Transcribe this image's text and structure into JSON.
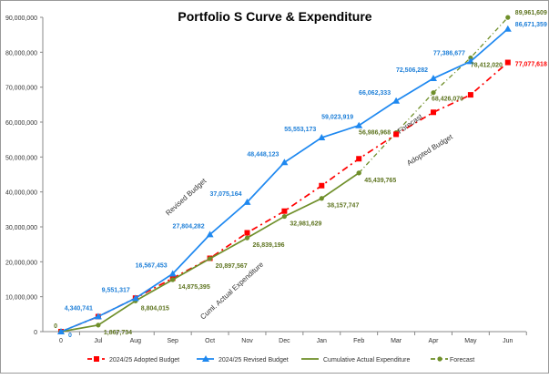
{
  "chart_data": {
    "type": "line",
    "title": "Portfolio S Curve & Expenditure",
    "categories": [
      "0",
      "Jul",
      "Aug",
      "Sep",
      "Oct",
      "Nov",
      "Dec",
      "Jan",
      "Feb",
      "Mar",
      "Apr",
      "May",
      "Jun"
    ],
    "ylim": [
      0,
      90000000
    ],
    "yticks": [
      "0",
      "10,000,000",
      "20,000,000",
      "30,000,000",
      "40,000,000",
      "50,000,000",
      "60,000,000",
      "70,000,000",
      "80,000,000",
      "90,000,000"
    ],
    "ytick_values": [
      0,
      10000000,
      20000000,
      30000000,
      40000000,
      50000000,
      60000000,
      70000000,
      80000000,
      90000000
    ],
    "grid": false,
    "legend_position": "bottom",
    "series": [
      {
        "name": "2024/25 Adopted Budget",
        "color": "#ff0000",
        "style": "dash-dot",
        "marker": "square",
        "values": [
          0,
          4300000,
          9600000,
          15300000,
          21000000,
          28300000,
          34500000,
          41800000,
          49500000,
          56500000,
          62800000,
          67800000,
          77077618
        ],
        "labels": [
          null,
          null,
          null,
          null,
          null,
          null,
          null,
          null,
          null,
          null,
          null,
          null,
          "77,077,618"
        ]
      },
      {
        "name": "2024/25 Revised Budget",
        "color": "#1e88f0",
        "style": "solid",
        "marker": "triangle",
        "values": [
          0,
          4340741,
          9551317,
          16567453,
          27804282,
          37075164,
          48448123,
          55553173,
          59023919,
          66062333,
          72506282,
          77386677,
          86671359
        ],
        "labels": [
          "0",
          "4,340,741",
          "9,551,317",
          "16,567,453",
          "27,804,282",
          "37,075,164",
          "48,448,123",
          "55,553,173",
          "59,023,919",
          "66,062,333",
          "72,506,282",
          "77,386,677",
          "86,671,359"
        ]
      },
      {
        "name": "Cumulative Actual Expenditure",
        "color": "#6f8f2a",
        "style": "solid",
        "marker": "circle",
        "values": [
          0,
          1867734,
          8804015,
          14875395,
          20897567,
          26839196,
          32981629,
          38157747,
          45439765,
          null,
          null,
          null,
          null
        ],
        "labels": [
          "0",
          "1,867,734",
          "8,804,015",
          "14,875,395",
          "20,897,567",
          "26,839,196",
          "32,981,629",
          "38,157,747",
          "45,439,765",
          null,
          null,
          null,
          null
        ]
      },
      {
        "name": "Forecast",
        "color": "#6f8f2a",
        "style": "dash-dot",
        "marker": "circle",
        "values": [
          null,
          null,
          null,
          null,
          null,
          null,
          null,
          null,
          45439765,
          56986968,
          68426070,
          78412020,
          89961609
        ],
        "labels": [
          null,
          null,
          null,
          null,
          null,
          null,
          null,
          null,
          null,
          "56,986,968",
          "68,426,070",
          "78,412,020",
          "89,961,609"
        ]
      }
    ],
    "annotations": [
      "Revised Budget",
      "Cuml. Actual Expenditure",
      "Forecast",
      "Adopted Budget"
    ]
  }
}
